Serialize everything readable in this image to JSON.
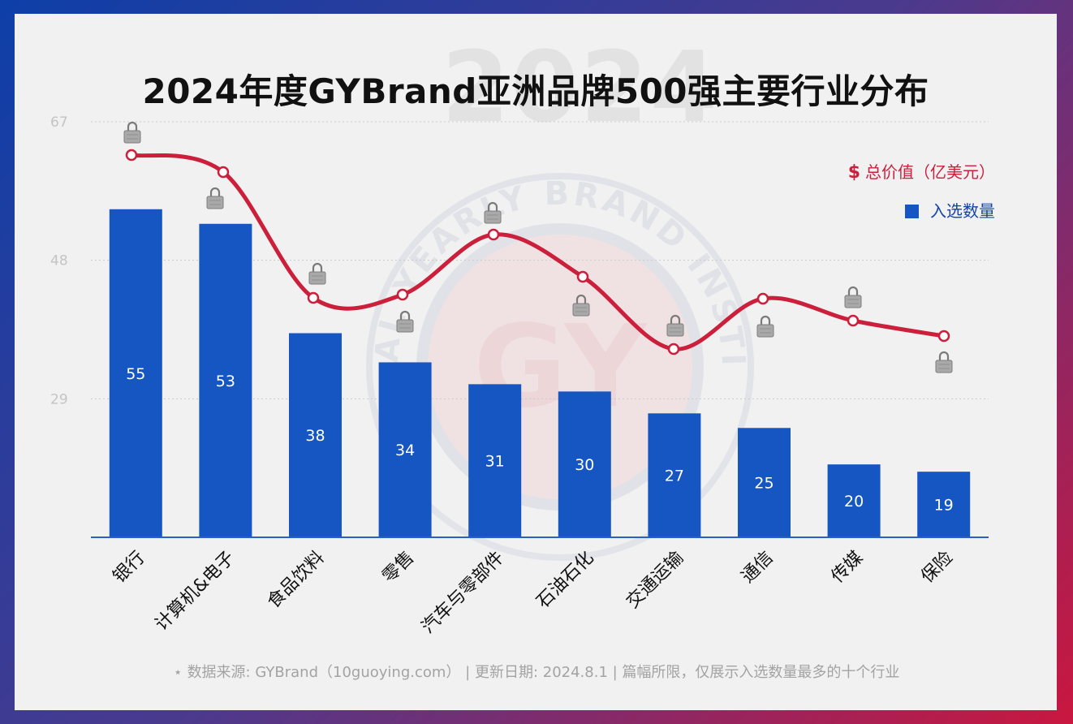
{
  "title": "2024年度GYBrand亚洲品牌500强主要行业分布",
  "watermark": {
    "year": "2024",
    "ring_text": "GLOBAL YEARLY BRAND INSTITUTE",
    "logo": "GY"
  },
  "legend": {
    "value_label": "总价值（亿美元）",
    "value_icon": "$",
    "count_label": "入选数量"
  },
  "footer": {
    "star": "⋆",
    "source": "数据来源: GYBrand（10guoying.com）",
    "updated": "更新日期: 2024.8.1",
    "note": "篇幅所限，仅展示入选数量最多的十个行业"
  },
  "colors": {
    "bar": "#1556c2",
    "line": "#cc1f3c",
    "axis": "#2b5fc4",
    "grid": "#cccccc"
  },
  "chart_data": {
    "type": "bar",
    "title": "2024年度GYBrand亚洲品牌500强主要行业分布",
    "categories": [
      "银行",
      "计算机&电子",
      "食品饮料",
      "零售",
      "汽车与零部件",
      "石油石化",
      "交通运输",
      "通信",
      "传媒",
      "保险"
    ],
    "y_ticks": [
      "29",
      "48",
      "67"
    ],
    "ylim": [
      10,
      67
    ],
    "series": [
      {
        "name": "入选数量",
        "type": "bar",
        "values": [
          55,
          53,
          38,
          34,
          31,
          30,
          27,
          25,
          20,
          19
        ]
      },
      {
        "name": "总价值（亿美元）",
        "type": "line",
        "values": [
          null,
          null,
          null,
          null,
          null,
          null,
          null,
          null,
          null,
          null
        ],
        "value_labels_hidden": true,
        "hidden_label_icon": "lock-icon"
      }
    ],
    "grid": true,
    "legend_position": "top-right"
  }
}
